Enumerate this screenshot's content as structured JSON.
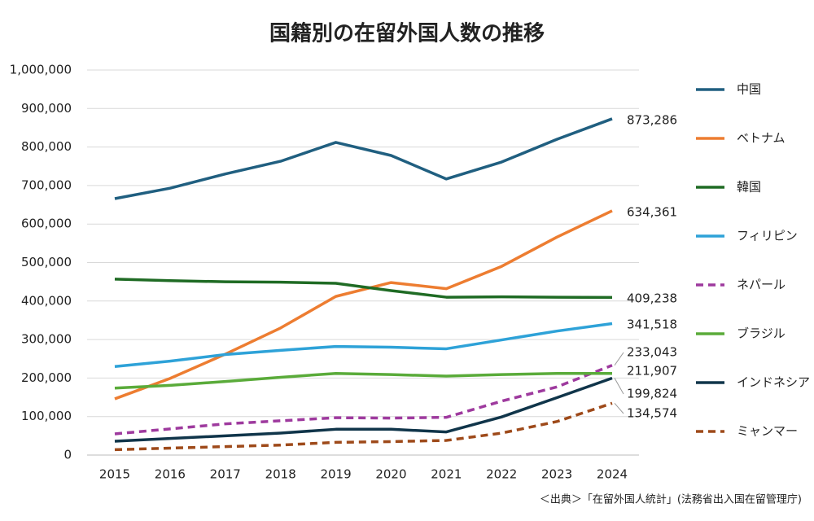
{
  "chart_data": {
    "type": "line",
    "title": "国籍別の在留外国人数の推移",
    "source": "＜出典＞「在留外国人統計」(法務省出入国在留管理庁)",
    "categories": [
      "2015",
      "2016",
      "2017",
      "2018",
      "2019",
      "2020",
      "2021",
      "2022",
      "2023",
      "2024"
    ],
    "ylim": [
      0,
      1000000
    ],
    "yticks": [
      0,
      {
        "value": 100000,
        "label": "100,000"
      },
      {
        "value": 200000,
        "label": "200,000"
      },
      {
        "value": 300000,
        "label": "300,000"
      },
      {
        "value": 400000,
        "label": "400,000"
      },
      {
        "value": 500000,
        "label": "500,000"
      },
      {
        "value": 600000,
        "label": "600,000"
      },
      {
        "value": 700000,
        "label": "700,000"
      },
      {
        "value": 800000,
        "label": "800,000"
      },
      {
        "value": 900000,
        "label": "900,000"
      },
      {
        "value": 1000000,
        "label": "1,000,000"
      }
    ],
    "grid": true,
    "legend": "right",
    "series": [
      {
        "name": "中国",
        "color": "#205f80",
        "dashed": false,
        "values": [
          666000,
          693000,
          730000,
          763000,
          812000,
          778000,
          717000,
          761000,
          820000,
          873286
        ],
        "value_labels": [
          null,
          null,
          null,
          null,
          null,
          null,
          null,
          null,
          null,
          "873,286"
        ]
      },
      {
        "name": "ベトナム",
        "color": "#ed7d31",
        "dashed": false,
        "values": [
          146000,
          199000,
          262000,
          330000,
          412000,
          448000,
          432000,
          490000,
          566000,
          634361
        ],
        "value_labels": [
          null,
          null,
          null,
          null,
          null,
          null,
          null,
          null,
          null,
          "634,361"
        ]
      },
      {
        "name": "韓国",
        "color": "#1f6b24",
        "dashed": false,
        "values": [
          457000,
          453000,
          450000,
          449000,
          446000,
          427000,
          410000,
          411000,
          410000,
          409238
        ],
        "value_labels": [
          null,
          null,
          null,
          null,
          null,
          null,
          null,
          null,
          null,
          "409,238"
        ]
      },
      {
        "name": "フィリピン",
        "color": "#2ea2d8",
        "dashed": false,
        "values": [
          230000,
          244000,
          261000,
          272000,
          282000,
          280000,
          276000,
          299000,
          322000,
          341518
        ],
        "value_labels": [
          null,
          null,
          null,
          null,
          null,
          null,
          null,
          null,
          null,
          "341,518"
        ]
      },
      {
        "name": "ネパール",
        "color": "#9e3a9e",
        "dashed": true,
        "values": [
          55000,
          68000,
          81000,
          89000,
          97000,
          96000,
          98000,
          140000,
          177000,
          233043
        ],
        "value_labels": [
          null,
          null,
          null,
          null,
          null,
          null,
          null,
          null,
          null,
          "233,043"
        ]
      },
      {
        "name": "ブラジル",
        "color": "#5aab3a",
        "dashed": false,
        "values": [
          174000,
          181000,
          191000,
          202000,
          212000,
          209000,
          205000,
          209000,
          212000,
          211907
        ],
        "value_labels": [
          null,
          null,
          null,
          null,
          null,
          null,
          null,
          null,
          null,
          "211,907"
        ]
      },
      {
        "name": "インドネシア",
        "color": "#10354a",
        "dashed": false,
        "values": [
          36000,
          43000,
          50000,
          57000,
          67000,
          67000,
          60000,
          99000,
          149000,
          199824
        ],
        "value_labels": [
          null,
          null,
          null,
          null,
          null,
          null,
          null,
          null,
          null,
          "199,824"
        ]
      },
      {
        "name": "ミャンマー",
        "color": "#9e4a1a",
        "dashed": true,
        "values": [
          14000,
          18000,
          22000,
          26000,
          33000,
          35000,
          38000,
          57000,
          87000,
          134574
        ],
        "value_labels": [
          null,
          null,
          null,
          null,
          null,
          null,
          null,
          null,
          null,
          "134,574"
        ]
      }
    ]
  }
}
